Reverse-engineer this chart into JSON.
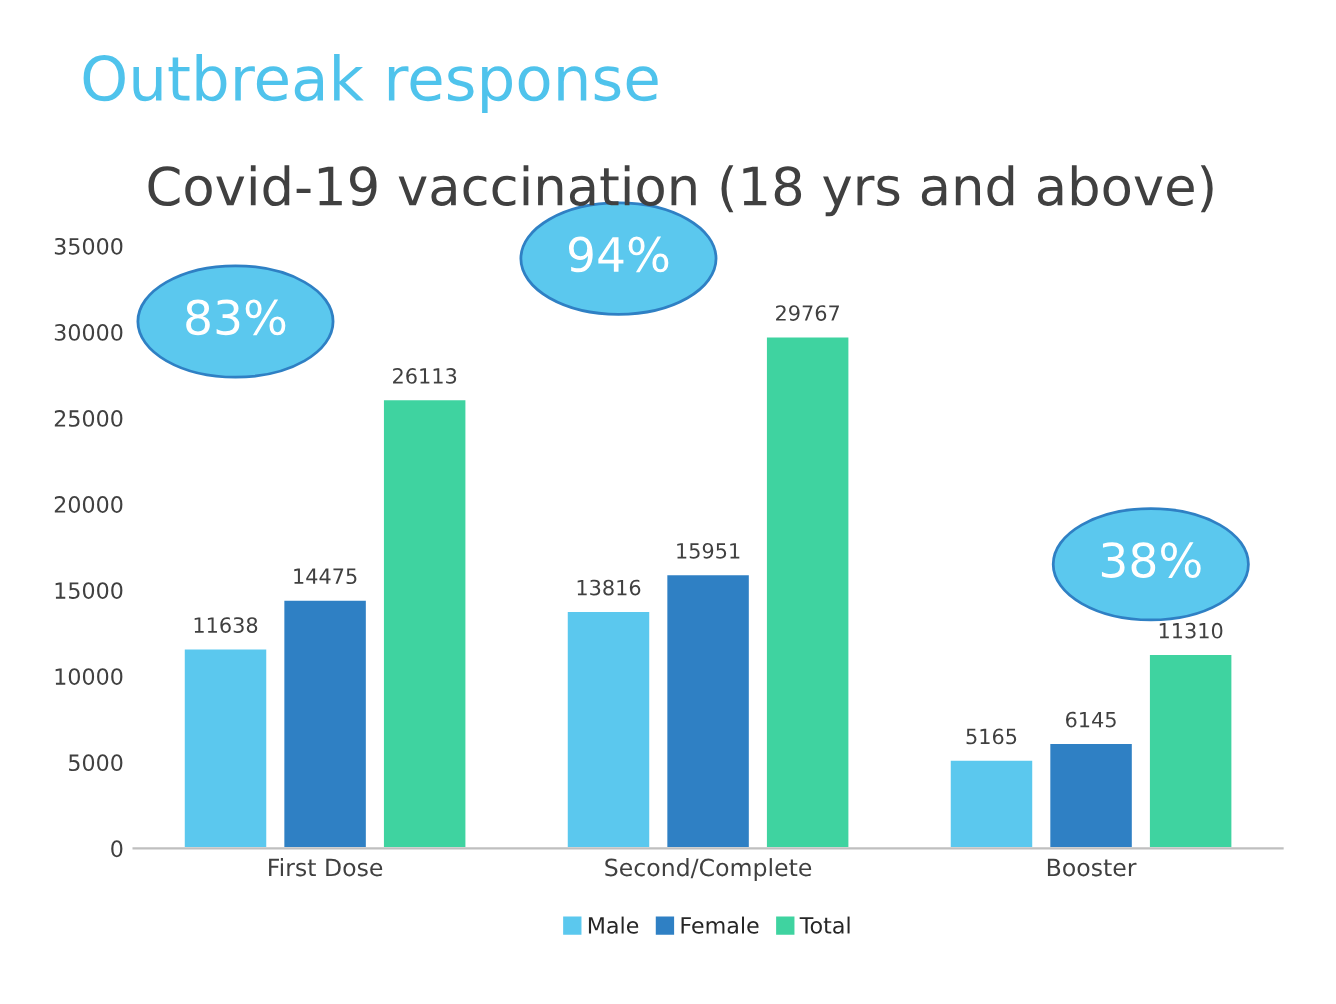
{
  "chart_data": {
    "type": "bar",
    "title": "Outbreak response",
    "subtitle": "Covid-19 vaccination (18 yrs and above)",
    "categories": [
      "First Dose",
      "Second/Complete",
      "Booster"
    ],
    "series": [
      {
        "name": "Male",
        "color": "#5bc8ee",
        "values": [
          11638,
          13816,
          5165
        ]
      },
      {
        "name": "Female",
        "color": "#2f80c4",
        "values": [
          14475,
          15951,
          6145
        ]
      },
      {
        "name": "Total",
        "color": "#3fd3a0",
        "values": [
          26113,
          29767,
          11310
        ]
      }
    ],
    "ylim": [
      0,
      35000
    ],
    "yticks": [
      0,
      5000,
      10000,
      15000,
      20000,
      25000,
      30000,
      35000
    ],
    "data_labels": true,
    "legend": "bottom",
    "grid": false,
    "annotations": [
      "83%",
      "94%",
      "38%"
    ]
  }
}
